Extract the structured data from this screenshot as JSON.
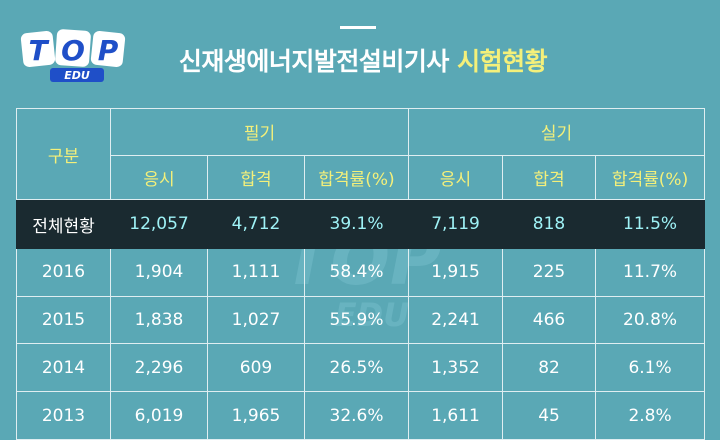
{
  "logo": {
    "top": "TOP",
    "sub": "EDU"
  },
  "title": {
    "main": "신재생에너지발전설비기사",
    "highlight": "시험현황"
  },
  "table": {
    "category_header": "구분",
    "groups": [
      "필기",
      "실기"
    ],
    "subheaders": [
      "응시",
      "합격",
      "합격률(%)",
      "응시",
      "합격",
      "합격률(%)"
    ],
    "total": {
      "label": "전체현황",
      "values": [
        "12,057",
        "4,712",
        "39.1%",
        "7,119",
        "818",
        "11.5%"
      ]
    },
    "rows": [
      {
        "year": "2016",
        "values": [
          "1,904",
          "1,111",
          "58.4%",
          "1,915",
          "225",
          "11.7%"
        ]
      },
      {
        "year": "2015",
        "values": [
          "1,838",
          "1,027",
          "55.9%",
          "2,241",
          "466",
          "20.8%"
        ]
      },
      {
        "year": "2014",
        "values": [
          "2,296",
          "609",
          "26.5%",
          "1,352",
          "82",
          "6.1%"
        ]
      },
      {
        "year": "2013",
        "values": [
          "6,019",
          "1,965",
          "32.6%",
          "1,611",
          "45",
          "2.8%"
        ]
      }
    ]
  },
  "colors": {
    "background": "#5aa8b5",
    "header_text": "#f4f07a",
    "total_row_bg": "#1a2a30",
    "total_row_text": "#9ff2f6",
    "logo_blue": "#1f4fc8"
  }
}
